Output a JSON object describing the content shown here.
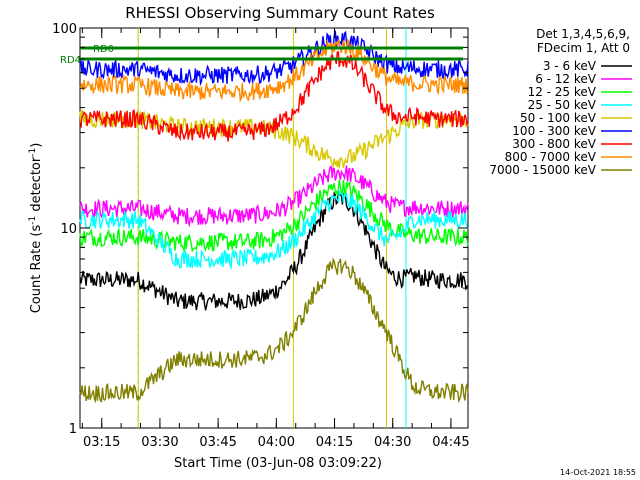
{
  "chart_data": {
    "type": "line",
    "title": "RHESSI Observing Summary Count Rates",
    "xlabel": "Start Time (03-Jun-08 03:09:22)",
    "ylabel": "Count Rate (s",
    "ylabel_sup": "-1",
    "ylabel_rest": " detector",
    "ylabel_sup2": "-1",
    "ylabel_end": ")",
    "yscale": "log",
    "ylim": [
      1,
      100
    ],
    "xlim_minutes": [
      0,
      100
    ],
    "x_ticks": [
      {
        "label": "03:15",
        "minute": 5.6
      },
      {
        "label": "03:30",
        "minute": 20.6
      },
      {
        "label": "03:45",
        "minute": 35.6
      },
      {
        "label": "04:00",
        "minute": 50.6
      },
      {
        "label": "04:15",
        "minute": 65.6
      },
      {
        "label": "04:30",
        "minute": 80.6
      },
      {
        "label": "04:45",
        "minute": 95.6
      }
    ],
    "y_ticks": [
      {
        "label": "1",
        "value": 1
      },
      {
        "label": "10",
        "value": 10
      },
      {
        "label": "100",
        "value": 100
      }
    ],
    "legend_header": [
      "Det 1,3,4,5,6,9,",
      "FDecim 1, Att 0"
    ],
    "legend_position": "right",
    "series": [
      {
        "name": "3 - 6 keV",
        "color": "#000000",
        "base": 4.3,
        "peak": 14,
        "night": 5.5
      },
      {
        "name": "6 - 12 keV",
        "color": "#ff00ff",
        "base": 11.5,
        "peak": 19,
        "night": 12.5
      },
      {
        "name": "12 - 25 keV",
        "color": "#00ff00",
        "base": 8.5,
        "peak": 16,
        "night": 9
      },
      {
        "name": "25 - 50 keV",
        "color": "#00ffff",
        "base": 7,
        "peak": 14,
        "night": 11
      },
      {
        "name": "50 - 100 keV",
        "color": "#d8c800",
        "base": 32,
        "peak": 22,
        "night": 35
      },
      {
        "name": "100 - 300 keV",
        "color": "#0000ff",
        "base": 58,
        "peak": 88,
        "night": 62
      },
      {
        "name": "300 - 800 keV",
        "color": "#ff0000",
        "base": 30,
        "peak": 70,
        "night": 35
      },
      {
        "name": "800 - 7000 keV",
        "color": "#ff8c00",
        "base": 48,
        "peak": 82,
        "night": 52
      },
      {
        "name": "7000 - 15000 keV",
        "color": "#808000",
        "base": 2.2,
        "peak": 6.5,
        "night": 1.5
      }
    ],
    "annotations": [
      {
        "label": "RD0",
        "color": "#008000"
      },
      {
        "label": "RD4",
        "color": "#008000"
      }
    ],
    "saa_intervals_minutes": [
      [
        0,
        15
      ],
      [
        84,
        100
      ]
    ],
    "eclipse_intervals_minutes": [
      [
        15,
        55
      ],
      [
        79,
        100
      ]
    ]
  },
  "footer": {
    "timestamp": "14-Oct-2021 18:55"
  }
}
